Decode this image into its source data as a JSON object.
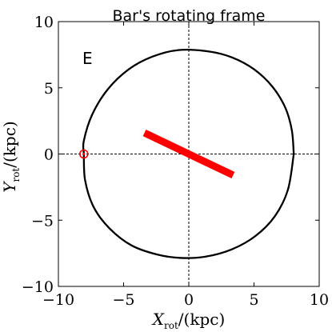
{
  "chart_data": {
    "type": "line",
    "title": "Bar's rotating frame",
    "panel_label": "E",
    "xlabel": {
      "var": "X",
      "sub": "rot",
      "unit": "/(kpc)"
    },
    "ylabel": {
      "var": "Y",
      "sub": "rot",
      "unit": "/(kpc)"
    },
    "xlim": [
      -10,
      10
    ],
    "ylim": [
      -10,
      10
    ],
    "xticks": [
      -10,
      -5,
      0,
      5,
      10
    ],
    "yticks": [
      -10,
      -5,
      0,
      5,
      10
    ],
    "xtick_labels": [
      "−10",
      "−5",
      "0",
      "5",
      "10"
    ],
    "ytick_labels": [
      "−10",
      "−5",
      "0",
      "5",
      "10"
    ],
    "grid": false,
    "zero_lines": true,
    "orbit": {
      "color": "#000000",
      "points": [
        [
          8.05,
          0.0
        ],
        [
          7.9,
          1.8
        ],
        [
          7.4,
          3.5
        ],
        [
          6.4,
          5.1
        ],
        [
          5.0,
          6.4
        ],
        [
          3.3,
          7.3
        ],
        [
          1.5,
          7.75
        ],
        [
          -0.8,
          7.85
        ],
        [
          -2.8,
          7.35
        ],
        [
          -4.6,
          6.4
        ],
        [
          -6.2,
          4.9
        ],
        [
          -7.4,
          3.0
        ],
        [
          -8.05,
          1.0
        ],
        [
          -8.05,
          0.0
        ],
        [
          -7.95,
          -2.0
        ],
        [
          -7.3,
          -4.0
        ],
        [
          -6.1,
          -5.6
        ],
        [
          -4.4,
          -6.9
        ],
        [
          -2.4,
          -7.6
        ],
        [
          -0.6,
          -7.85
        ],
        [
          1.3,
          -7.75
        ],
        [
          3.3,
          -7.2
        ],
        [
          5.1,
          -6.2
        ],
        [
          6.6,
          -4.7
        ],
        [
          7.6,
          -2.7
        ],
        [
          8.05,
          0.0
        ]
      ]
    },
    "bar": {
      "color": "#ff0000",
      "x": [
        -3.4,
        3.4
      ],
      "y": [
        1.6,
        -1.6
      ]
    },
    "sun_marker": {
      "x": -8.05,
      "y": 0.0,
      "color": "#ff0000"
    }
  }
}
